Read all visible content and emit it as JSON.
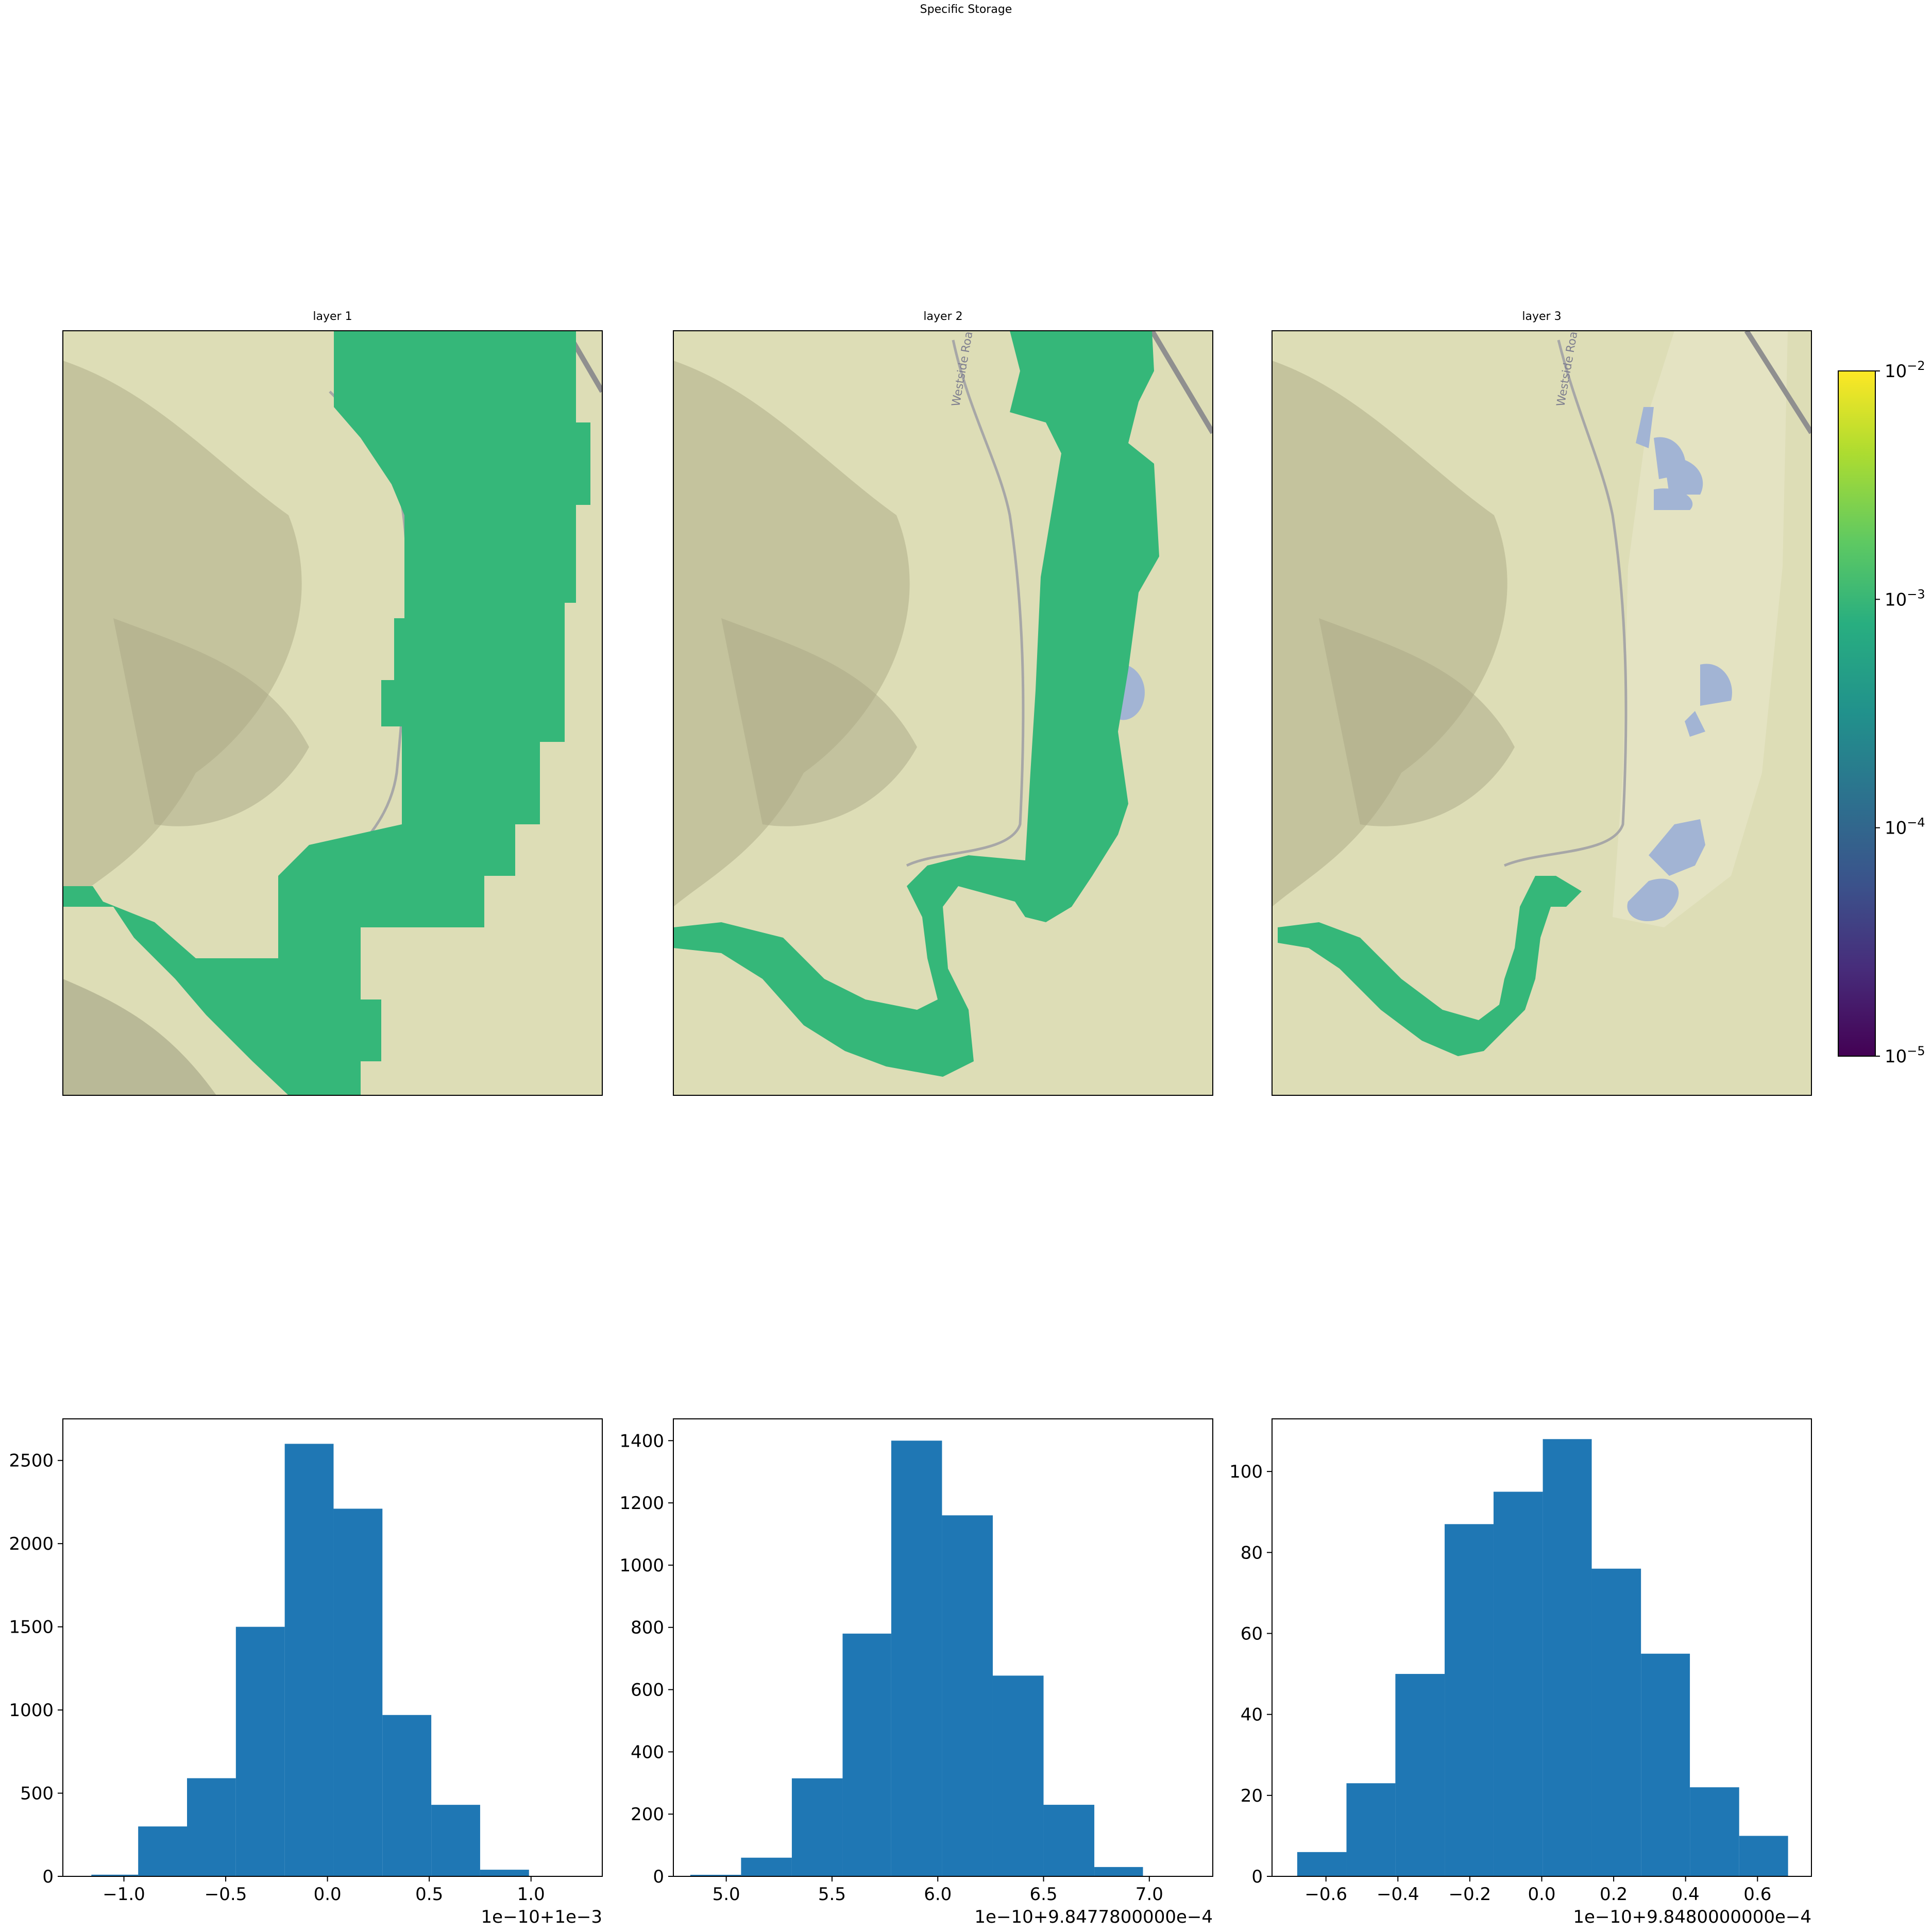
{
  "title": "Specific Storage",
  "colors": {
    "map_land": "#ddddb6",
    "map_hill": "#a9a886",
    "map_road": "#a7a7a7",
    "map_water": "#a2b4d4",
    "layer_fill": "#35b779",
    "bar": "#1f77b4"
  },
  "maps": [
    {
      "title": "layer 1"
    },
    {
      "title": "layer 2",
      "road_label": "Westside Road"
    },
    {
      "title": "layer 3",
      "road_label": "Westside Road"
    }
  ],
  "colorbar": {
    "scale": "log",
    "cmap": "viridis",
    "range": [
      1e-05,
      0.01
    ],
    "tick_values": [
      1e-05,
      0.0001,
      0.001,
      0.01
    ],
    "ticks": [
      {
        "base": "10",
        "exp": "−5"
      },
      {
        "base": "10",
        "exp": "−4"
      },
      {
        "base": "10",
        "exp": "−3"
      },
      {
        "base": "10",
        "exp": "−2"
      }
    ]
  },
  "chart_data": [
    {
      "type": "bar",
      "xlim": [
        -1.3,
        1.35
      ],
      "ylim": [
        0,
        2750
      ],
      "xticks": [
        -1.0,
        -0.5,
        0.0,
        0.5,
        1.0
      ],
      "xtick_labels": [
        "−1.0",
        "−0.5",
        "0.0",
        "0.5",
        "1.0"
      ],
      "yticks": [
        0,
        500,
        1000,
        1500,
        2000,
        2500
      ],
      "ytick_labels": [
        "0",
        "500",
        "1000",
        "1500",
        "2000",
        "2500"
      ],
      "offset_label": "1e−10+1e−3",
      "bin_edges": [
        -1.16,
        -0.93,
        -0.69,
        -0.45,
        -0.21,
        0.03,
        0.27,
        0.51,
        0.75,
        0.99
      ],
      "values": [
        10,
        300,
        590,
        1500,
        2600,
        2210,
        970,
        430,
        40
      ]
    },
    {
      "type": "bar",
      "xlim": [
        4.75,
        7.3
      ],
      "ylim": [
        0,
        1470
      ],
      "xticks": [
        5.0,
        5.5,
        6.0,
        6.5,
        7.0
      ],
      "xtick_labels": [
        "5.0",
        "5.5",
        "6.0",
        "6.5",
        "7.0"
      ],
      "yticks": [
        0,
        200,
        400,
        600,
        800,
        1000,
        1200,
        1400
      ],
      "ytick_labels": [
        "0",
        "200",
        "400",
        "600",
        "800",
        "1000",
        "1200",
        "1400"
      ],
      "offset_label": "1e−10+9.8477800000e−4",
      "bin_edges": [
        4.83,
        5.07,
        5.31,
        5.55,
        5.78,
        6.02,
        6.26,
        6.5,
        6.74,
        6.97
      ],
      "values": [
        5,
        60,
        315,
        780,
        1400,
        1160,
        645,
        230,
        30
      ]
    },
    {
      "type": "bar",
      "xlim": [
        -0.75,
        0.75
      ],
      "ylim": [
        0,
        113
      ],
      "xticks": [
        -0.6,
        -0.4,
        -0.2,
        0.0,
        0.2,
        0.4,
        0.6
      ],
      "xtick_labels": [
        "−0.6",
        "−0.4",
        "−0.2",
        "0.0",
        "0.2",
        "0.4",
        "0.6"
      ],
      "yticks": [
        0,
        20,
        40,
        60,
        80,
        100
      ],
      "ytick_labels": [
        "0",
        "20",
        "40",
        "60",
        "80",
        "100"
      ],
      "offset_label": "1e−10+9.8480000000e−4",
      "bin_edges": [
        -0.68,
        -0.543,
        -0.407,
        -0.27,
        -0.134,
        0.003,
        0.139,
        0.276,
        0.412,
        0.549,
        0.685
      ],
      "values": [
        6,
        23,
        50,
        87,
        95,
        108,
        76,
        55,
        22,
        10
      ]
    }
  ]
}
